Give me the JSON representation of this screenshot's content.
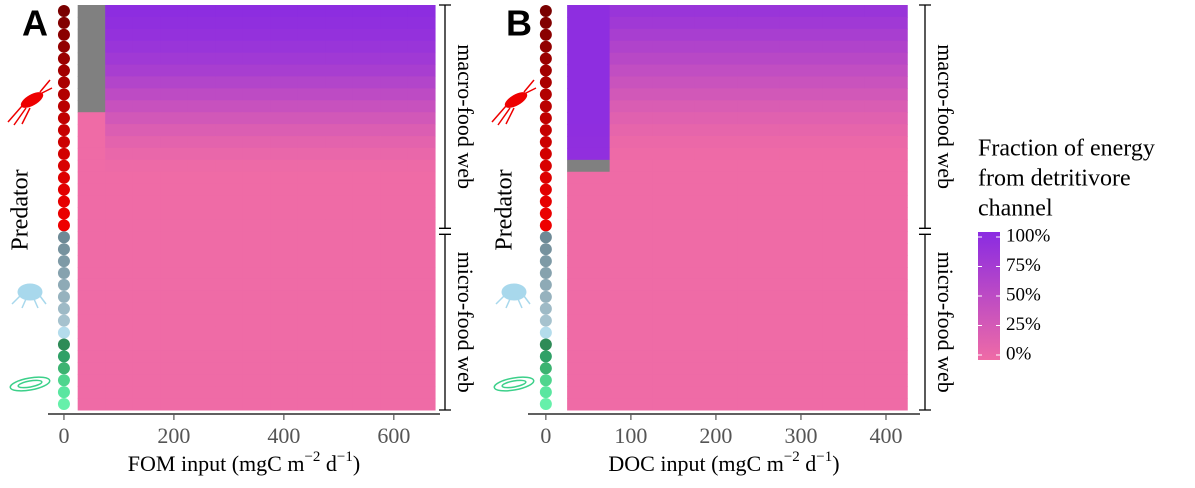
{
  "chart_data": [
    {
      "type": "heatmap",
      "panel": "A",
      "ylabel": "Predator",
      "xlabel": [
        "FOM input (mgC m",
        "−2",
        " d",
        "−1",
        ")"
      ],
      "x": [
        50,
        100,
        150,
        200,
        250,
        300,
        350,
        400,
        450,
        500,
        550,
        600,
        650
      ],
      "xlim": [
        -29,
        684
      ],
      "xticks": [
        0,
        200,
        400,
        600
      ],
      "groups": [
        {
          "label": "macro-food web",
          "predator_colors": [
            "#7a0000",
            "#820000",
            "#8a0000",
            "#920000",
            "#9a0000",
            "#a20000",
            "#aa0000",
            "#b20000",
            "#ba0000",
            "#c00000",
            "#c60000",
            "#cc0000",
            "#d20000",
            "#d80000",
            "#dd0000",
            "#e20000",
            "#e60000",
            "#ea0000",
            "#ee0000"
          ]
        },
        {
          "label": "micro-food web",
          "predator_colors": [
            "#6e8a96",
            "#76929e",
            "#7e9aa6",
            "#86a2ae",
            "#8eaab6",
            "#96b2be",
            "#9ebac6",
            "#a6c2ce",
            "#b4dcec",
            "#2e8b57",
            "#2fa066",
            "#3cb371",
            "#4fd58e",
            "#5ae6a0",
            "#66f0aa"
          ]
        }
      ],
      "values": [
        [
          null,
          97,
          97,
          97,
          97,
          97,
          97,
          97,
          97,
          97,
          97,
          97,
          97
        ],
        [
          null,
          94,
          94,
          94,
          94,
          94,
          94,
          94,
          94,
          94,
          94,
          94,
          94
        ],
        [
          null,
          90,
          90,
          90,
          90,
          90,
          90,
          90,
          90,
          90,
          90,
          90,
          90
        ],
        [
          null,
          85,
          85,
          85,
          85,
          85,
          85,
          85,
          85,
          85,
          85,
          85,
          85
        ],
        [
          null,
          78,
          78,
          78,
          78,
          78,
          78,
          78,
          78,
          78,
          78,
          78,
          78
        ],
        [
          null,
          70,
          70,
          70,
          70,
          70,
          70,
          70,
          70,
          70,
          70,
          70,
          70
        ],
        [
          null,
          60,
          60,
          60,
          60,
          60,
          60,
          60,
          60,
          60,
          60,
          60,
          60
        ],
        [
          null,
          50,
          50,
          50,
          50,
          50,
          50,
          50,
          50,
          50,
          50,
          50,
          50
        ],
        [
          null,
          40,
          40,
          40,
          40,
          40,
          40,
          40,
          40,
          40,
          40,
          40,
          40
        ],
        [
          0,
          30,
          30,
          30,
          30,
          30,
          30,
          30,
          30,
          30,
          30,
          30,
          30
        ],
        [
          0,
          20,
          20,
          20,
          20,
          20,
          20,
          20,
          20,
          20,
          20,
          20,
          20
        ],
        [
          0,
          12,
          12,
          12,
          12,
          12,
          12,
          12,
          12,
          12,
          12,
          12,
          12
        ],
        [
          0,
          6,
          6,
          6,
          6,
          6,
          6,
          6,
          6,
          6,
          6,
          6,
          6
        ],
        [
          0,
          2,
          2,
          2,
          2,
          2,
          2,
          2,
          2,
          2,
          2,
          2,
          2
        ],
        [
          0,
          0,
          0,
          0,
          0,
          0,
          0,
          0,
          0,
          0,
          0,
          0,
          0
        ],
        [
          0,
          0,
          0,
          0,
          0,
          0,
          0,
          0,
          0,
          0,
          0,
          0,
          0
        ],
        [
          0,
          0,
          0,
          0,
          0,
          0,
          0,
          0,
          0,
          0,
          0,
          0,
          0
        ],
        [
          0,
          0,
          0,
          0,
          0,
          0,
          0,
          0,
          0,
          0,
          0,
          0,
          0
        ],
        [
          0,
          0,
          0,
          0,
          0,
          0,
          0,
          0,
          0,
          0,
          0,
          0,
          0
        ],
        [
          0,
          0,
          0,
          0,
          0,
          0,
          0,
          0,
          0,
          0,
          0,
          0,
          0
        ],
        [
          0,
          0,
          0,
          0,
          0,
          0,
          0,
          0,
          0,
          0,
          0,
          0,
          0
        ],
        [
          0,
          0,
          0,
          0,
          0,
          0,
          0,
          0,
          0,
          0,
          0,
          0,
          0
        ],
        [
          0,
          0,
          0,
          0,
          0,
          0,
          0,
          0,
          0,
          0,
          0,
          0,
          0
        ],
        [
          0,
          0,
          0,
          0,
          0,
          0,
          0,
          0,
          0,
          0,
          0,
          0,
          0
        ],
        [
          0,
          0,
          0,
          0,
          0,
          0,
          0,
          0,
          0,
          0,
          0,
          0,
          0
        ],
        [
          0,
          0,
          0,
          0,
          0,
          0,
          0,
          0,
          0,
          0,
          0,
          0,
          0
        ],
        [
          0,
          0,
          0,
          0,
          0,
          0,
          0,
          0,
          0,
          0,
          0,
          0,
          0
        ],
        [
          0,
          0,
          0,
          0,
          0,
          0,
          0,
          0,
          0,
          0,
          0,
          0,
          0
        ],
        [
          0,
          0,
          0,
          0,
          0,
          0,
          0,
          0,
          0,
          0,
          0,
          0,
          0
        ],
        [
          0,
          0,
          0,
          0,
          0,
          0,
          0,
          0,
          0,
          0,
          0,
          0,
          0
        ],
        [
          0,
          0,
          0,
          0,
          0,
          0,
          0,
          0,
          0,
          0,
          0,
          0,
          0
        ],
        [
          0,
          0,
          0,
          0,
          0,
          0,
          0,
          0,
          0,
          0,
          0,
          0,
          0
        ],
        [
          0,
          0,
          0,
          0,
          0,
          0,
          0,
          0,
          0,
          0,
          0,
          0,
          0
        ],
        [
          0,
          0,
          0,
          0,
          0,
          0,
          0,
          0,
          0,
          0,
          0,
          0,
          0
        ]
      ]
    },
    {
      "type": "heatmap",
      "panel": "B",
      "ylabel": "Predator",
      "xlabel": [
        "DOC input (mgC m",
        "−2",
        " d",
        "−1",
        ")"
      ],
      "x": [
        50,
        100,
        150,
        200,
        250,
        300,
        350,
        400
      ],
      "xlim": [
        -21,
        440
      ],
      "xticks": [
        0,
        100,
        200,
        300,
        400
      ],
      "groups": [
        {
          "label": "macro-food web",
          "predator_colors": [
            "#7a0000",
            "#820000",
            "#8a0000",
            "#920000",
            "#9a0000",
            "#a20000",
            "#aa0000",
            "#b20000",
            "#ba0000",
            "#c00000",
            "#c60000",
            "#cc0000",
            "#d20000",
            "#d80000",
            "#dd0000",
            "#e20000",
            "#e60000",
            "#ea0000",
            "#ee0000"
          ]
        },
        {
          "label": "micro-food web",
          "predator_colors": [
            "#6e8a96",
            "#76929e",
            "#7e9aa6",
            "#86a2ae",
            "#8eaab6",
            "#96b2be",
            "#9ebac6",
            "#a6c2ce",
            "#b4dcec",
            "#2e8b57",
            "#2fa066",
            "#3cb371",
            "#4fd58e",
            "#5ae6a0",
            "#66f0aa"
          ]
        }
      ],
      "values": [
        [
          96,
          85,
          85,
          85,
          85,
          85,
          85,
          85
        ],
        [
          96,
          78,
          78,
          78,
          78,
          78,
          78,
          78
        ],
        [
          96,
          70,
          70,
          70,
          70,
          70,
          70,
          70
        ],
        [
          96,
          62,
          62,
          62,
          62,
          62,
          62,
          62
        ],
        [
          96,
          54,
          54,
          54,
          54,
          54,
          54,
          54
        ],
        [
          96,
          46,
          46,
          46,
          46,
          46,
          46,
          46
        ],
        [
          96,
          38,
          38,
          38,
          38,
          38,
          38,
          38
        ],
        [
          96,
          30,
          30,
          30,
          30,
          30,
          30,
          30
        ],
        [
          96,
          22,
          22,
          22,
          22,
          22,
          22,
          22
        ],
        [
          96,
          15,
          15,
          15,
          15,
          15,
          15,
          15
        ],
        [
          95,
          9,
          9,
          9,
          9,
          9,
          9,
          9
        ],
        [
          94,
          4,
          4,
          4,
          4,
          4,
          4,
          4
        ],
        [
          93,
          1,
          1,
          1,
          1,
          1,
          1,
          1
        ],
        [
          null,
          0,
          0,
          0,
          0,
          0,
          0,
          0
        ],
        [
          0,
          0,
          0,
          0,
          0,
          0,
          0,
          0
        ],
        [
          0,
          0,
          0,
          0,
          0,
          0,
          0,
          0
        ],
        [
          0,
          0,
          0,
          0,
          0,
          0,
          0,
          0
        ],
        [
          0,
          0,
          0,
          0,
          0,
          0,
          0,
          0
        ],
        [
          0,
          0,
          0,
          0,
          0,
          0,
          0,
          0
        ],
        [
          0,
          0,
          0,
          0,
          0,
          0,
          0,
          0
        ],
        [
          0,
          0,
          0,
          0,
          0,
          0,
          0,
          0
        ],
        [
          0,
          0,
          0,
          0,
          0,
          0,
          0,
          0
        ],
        [
          0,
          0,
          0,
          0,
          0,
          0,
          0,
          0
        ],
        [
          0,
          0,
          0,
          0,
          0,
          0,
          0,
          0
        ],
        [
          0,
          0,
          0,
          0,
          0,
          0,
          0,
          0
        ],
        [
          0,
          0,
          0,
          0,
          0,
          0,
          0,
          0
        ],
        [
          0,
          0,
          0,
          0,
          0,
          0,
          0,
          0
        ],
        [
          0,
          0,
          0,
          0,
          0,
          0,
          0,
          0
        ],
        [
          0,
          0,
          0,
          0,
          0,
          0,
          0,
          0
        ],
        [
          0,
          0,
          0,
          0,
          0,
          0,
          0,
          0
        ],
        [
          0,
          0,
          0,
          0,
          0,
          0,
          0,
          0
        ],
        [
          0,
          0,
          0,
          0,
          0,
          0,
          0,
          0
        ],
        [
          0,
          0,
          0,
          0,
          0,
          0,
          0,
          0
        ],
        [
          0,
          0,
          0,
          0,
          0,
          0,
          0,
          0
        ]
      ]
    }
  ],
  "legend": {
    "title": [
      "Fraction of energy",
      "from detritivore",
      "channel"
    ],
    "limits": [
      0,
      100
    ],
    "low_color": "#ef6ba6",
    "high_color": "#8a2be2",
    "na_color": "#808080",
    "ticks": [
      {
        "value": 0,
        "label": "0%"
      },
      {
        "value": 25,
        "label": "25%"
      },
      {
        "value": 50,
        "label": "50%"
      },
      {
        "value": 75,
        "label": "75%"
      },
      {
        "value": 100,
        "label": "100%"
      }
    ]
  }
}
